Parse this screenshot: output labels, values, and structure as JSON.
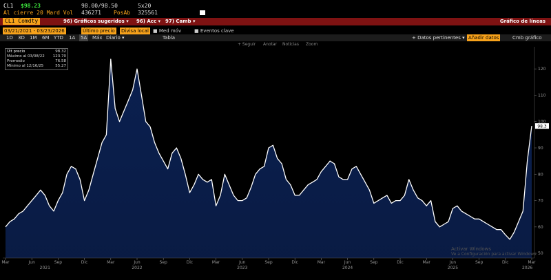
{
  "toolbar": {
    "ticker": "CL1",
    "price": "$98.23",
    "bid_ask": "98.00/98.50",
    "size": "5x20",
    "close_label": "Al cierre 20 Mard Vol",
    "volume": "436271",
    "open_int_label": "PosAb",
    "open_int": "325561",
    "security": "CL1 Comdty",
    "menus": [
      "96) Gráficos sugeridos ▾",
      "96) Acc ▾",
      "97) Camb ▾"
    ],
    "chart_kind": "Gráfico de líneas",
    "date_range": "03/21/2021 - 03/23/2026",
    "field": "Último precio",
    "currency": "Divisa local",
    "toggles": [
      "Med móv",
      "Eventos clave"
    ],
    "ranges": [
      "1D",
      "3D",
      "1M",
      "6M",
      "YTD",
      "1A",
      "5A",
      "Máx"
    ],
    "frequency": "Diario ▾",
    "table": "Tabla",
    "related": "+ Datos pertinentes ▾",
    "add_data": "Añadir datos",
    "change_chart": "Cmb gráfico",
    "tools": [
      "+ Seguir",
      "Anotar",
      "Noticias",
      "Zoom"
    ]
  },
  "chart_data": {
    "type": "line",
    "legend": [
      {
        "name": "Últ precio",
        "value": "98.32"
      },
      {
        "name": "Máximo al 03/08/22",
        "value": "123.70"
      },
      {
        "name": "Promedio",
        "value": "76.58"
      },
      {
        "name": "Mínimo al 12/16/25",
        "value": "55.27"
      }
    ],
    "values": [
      60,
      62,
      63,
      65,
      66,
      68,
      70,
      72,
      74,
      72,
      68,
      66,
      70,
      73,
      80,
      83,
      82,
      78,
      70,
      74,
      80,
      86,
      92,
      95,
      123.7,
      105,
      100,
      104,
      108,
      112,
      120,
      110,
      100,
      98,
      92,
      88,
      85,
      82,
      88,
      90,
      86,
      80,
      73,
      76,
      80,
      78,
      77,
      78,
      68,
      72,
      80,
      76,
      72,
      70,
      70,
      71,
      75,
      80,
      82,
      83,
      90,
      91,
      86,
      84,
      78,
      76,
      72,
      72,
      74,
      76,
      77,
      78,
      81,
      83,
      85,
      84,
      79,
      78,
      78,
      82,
      83,
      80,
      77,
      74,
      69,
      70,
      71,
      72,
      69,
      70,
      70,
      72,
      78,
      74,
      71,
      70,
      68,
      70,
      62,
      60,
      61,
      62,
      67,
      68,
      66,
      65,
      64,
      63,
      63,
      62,
      61,
      60,
      59,
      59,
      57,
      55.27,
      58,
      62,
      66,
      85,
      98.32
    ],
    "last_label": "98.3",
    "line_color": "#ffffff",
    "area_color": "#0b2050",
    "xlim": [
      0,
      120
    ],
    "xticks": [
      {
        "value": 0,
        "label": "Mar"
      },
      {
        "value": 6,
        "label": "Jun"
      },
      {
        "value": 12,
        "label": "Sep"
      },
      {
        "value": 18,
        "label": "Dic"
      },
      {
        "value": 24,
        "label": "Mar"
      },
      {
        "value": 30,
        "label": "Jun"
      },
      {
        "value": 36,
        "label": "Sep"
      },
      {
        "value": 42,
        "label": "Dic"
      },
      {
        "value": 48,
        "label": "Mar"
      },
      {
        "value": 54,
        "label": "Jun"
      },
      {
        "value": 60,
        "label": "Sep"
      },
      {
        "value": 66,
        "label": "Dic"
      },
      {
        "value": 72,
        "label": "Mar"
      },
      {
        "value": 78,
        "label": "Jun"
      },
      {
        "value": 84,
        "label": "Sep"
      },
      {
        "value": 90,
        "label": "Dic"
      },
      {
        "value": 96,
        "label": "Mar"
      },
      {
        "value": 102,
        "label": "Jun"
      },
      {
        "value": 108,
        "label": "Sep"
      },
      {
        "value": 114,
        "label": "Dic"
      },
      {
        "value": 120,
        "label": "Mar"
      }
    ],
    "years": [
      {
        "value": 9,
        "label": "2021"
      },
      {
        "value": 30,
        "label": "2022"
      },
      {
        "value": 54,
        "label": "2023"
      },
      {
        "value": 78,
        "label": "2024"
      },
      {
        "value": 102,
        "label": "2025"
      },
      {
        "value": 119,
        "label": "2026"
      }
    ],
    "ylim": [
      48.2,
      128.4
    ],
    "yticks": [
      50,
      60,
      70,
      80,
      90,
      100,
      110,
      120
    ]
  },
  "watermark": [
    "Activar Windows",
    "Ve a Configuración para activar Windows."
  ]
}
